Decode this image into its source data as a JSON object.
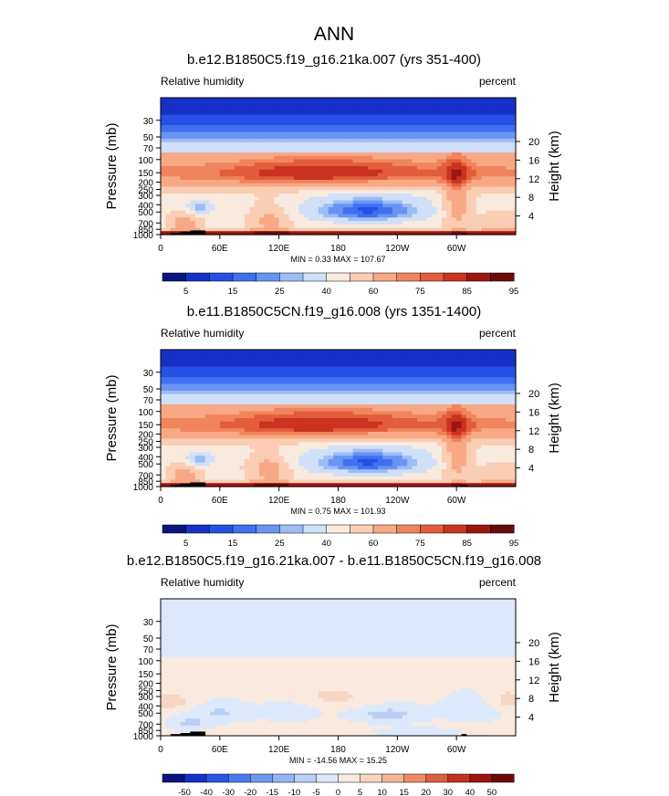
{
  "figure": {
    "title": "ANN"
  },
  "axes_common": {
    "y_pressure_ticks": [
      1000,
      850,
      700,
      500,
      400,
      300,
      250,
      200,
      150,
      100,
      70,
      50,
      30
    ],
    "y_left_label": "Pressure (mb)",
    "y_right_label": "Height (km)",
    "y_height_ticks": [
      4,
      8,
      12,
      16,
      20
    ],
    "x_ticks": [
      "0",
      "60E",
      "120E",
      "180",
      "120W",
      "60W"
    ],
    "colors_abs": [
      "#08157f",
      "#1631c7",
      "#2450e6",
      "#3e71f0",
      "#6a94f2",
      "#9ebcf5",
      "#cfe0f8",
      "#f8eadf",
      "#fbcdb3",
      "#f7a986",
      "#f1845d",
      "#e25d3b",
      "#c9331f",
      "#9a160f",
      "#6b0a0a"
    ],
    "colors_diff": [
      "#08157f",
      "#1631c7",
      "#2a58e4",
      "#4979ec",
      "#6f98f1",
      "#94b5f4",
      "#b8cff7",
      "#dde8fb",
      "#f8eadf",
      "#f7d5c1",
      "#f6b599",
      "#ec8c67",
      "#dc5f3d",
      "#c23420",
      "#9a160f",
      "#6b0a0a"
    ]
  },
  "chart_data": [
    {
      "type": "contour",
      "title": "b.e12.B1850C5.f19_g16.21ka.007 (yrs 351-400)",
      "variable": "Relative humidity",
      "units": "percent",
      "stats_label": "MIN =    0.33  MAX = 107.67",
      "min": 0.33,
      "max": 107.67,
      "colorbar_levels": [
        5,
        10,
        15,
        20,
        25,
        30,
        40,
        50,
        60,
        70,
        75,
        80,
        85,
        90,
        95
      ],
      "colorbar_labels": [
        "5",
        "15",
        "25",
        "40",
        "60",
        "75",
        "85",
        "95"
      ]
    },
    {
      "type": "contour",
      "title": "b.e11.B1850C5CN.f19_g16.008 (yrs 1351-1400)",
      "variable": "Relative humidity",
      "units": "percent",
      "stats_label": "MIN =    0.75  MAX = 101.93",
      "min": 0.75,
      "max": 101.93,
      "colorbar_levels": [
        5,
        10,
        15,
        20,
        25,
        30,
        40,
        50,
        60,
        70,
        75,
        80,
        85,
        90,
        95
      ],
      "colorbar_labels": [
        "5",
        "15",
        "25",
        "40",
        "60",
        "75",
        "85",
        "95"
      ]
    },
    {
      "type": "contour",
      "title": "b.e12.B1850C5.f19_g16.21ka.007 - b.e11.B1850C5CN.f19_g16.008",
      "variable": "Relative humidity",
      "units": "percent",
      "stats_label": "MIN = -14.56  MAX =  15.25",
      "min": -14.56,
      "max": 15.25,
      "colorbar_levels": [
        -50,
        -40,
        -30,
        -20,
        -15,
        -10,
        -5,
        0,
        5,
        10,
        15,
        20,
        30,
        40,
        50
      ],
      "colorbar_labels": [
        "-50",
        "-40",
        "-30",
        "-20",
        "-15",
        "-10",
        "-5",
        "0",
        "5",
        "10",
        "15",
        "20",
        "30",
        "40",
        "50"
      ]
    }
  ]
}
